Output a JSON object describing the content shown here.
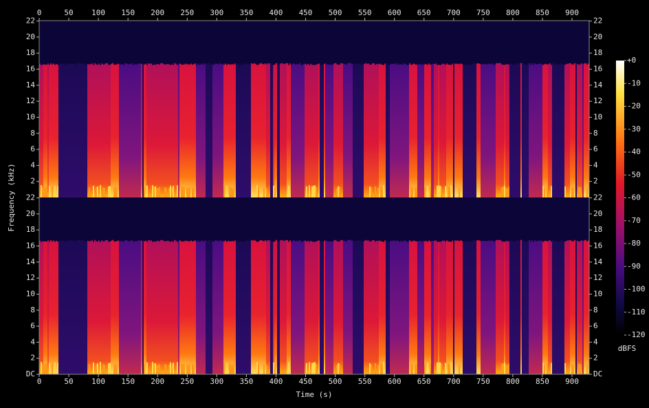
{
  "chart_data": {
    "type": "spectrogram",
    "xlabel": "Time (s)",
    "ylabel": "Frequency (kHz)",
    "xlim": [
      0,
      929
    ],
    "xticks": [
      0,
      50,
      100,
      150,
      200,
      250,
      300,
      350,
      400,
      450,
      500,
      550,
      600,
      650,
      700,
      750,
      800,
      850,
      900
    ],
    "panels": [
      {
        "ylim": [
          0,
          22.05
        ],
        "yticks": [
          2,
          4,
          6,
          8,
          10,
          12,
          14,
          16,
          18,
          20,
          22
        ]
      },
      {
        "ylim": [
          0,
          22.05
        ],
        "yticks": [
          {
            "value": 0,
            "label": "DC"
          },
          2,
          4,
          6,
          8,
          10,
          12,
          14,
          16,
          18,
          20,
          22
        ]
      }
    ],
    "colorbar": {
      "label": "dBFS",
      "clim": [
        -120,
        0
      ],
      "ticks": [
        {
          "value": 0,
          "label": "+0"
        },
        -10,
        -20,
        -30,
        -40,
        -50,
        -60,
        -70,
        -80,
        -90,
        -100,
        -110,
        -120
      ]
    }
  }
}
